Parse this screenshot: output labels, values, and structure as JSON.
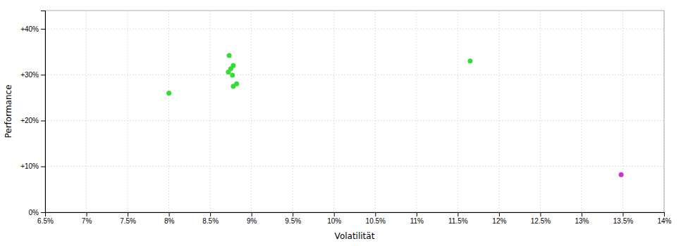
{
  "chart_data": {
    "type": "scatter",
    "x_label": "Volatilität",
    "y_label": "Performance",
    "xlim": [
      0.065,
      0.14
    ],
    "ylim": [
      0.0,
      0.44
    ],
    "xticks": [
      {
        "value": 0.065,
        "label": "6.5%"
      },
      {
        "value": 0.07,
        "label": "7%"
      },
      {
        "value": 0.075,
        "label": "7.5%"
      },
      {
        "value": 0.08,
        "label": "8%"
      },
      {
        "value": 0.085,
        "label": "8.5%"
      },
      {
        "value": 0.09,
        "label": "9%"
      },
      {
        "value": 0.095,
        "label": "9.5%"
      },
      {
        "value": 0.1,
        "label": "10%"
      },
      {
        "value": 0.105,
        "label": "10.5%"
      },
      {
        "value": 0.11,
        "label": "11%"
      },
      {
        "value": 0.115,
        "label": "11.5%"
      },
      {
        "value": 0.12,
        "label": "12%"
      },
      {
        "value": 0.125,
        "label": "12.5%"
      },
      {
        "value": 0.13,
        "label": "13%"
      },
      {
        "value": 0.135,
        "label": "13.5%"
      },
      {
        "value": 0.14,
        "label": "14%"
      }
    ],
    "yticks": [
      {
        "value": 0.0,
        "label": "0%"
      },
      {
        "value": 0.1,
        "label": "+10%"
      },
      {
        "value": 0.2,
        "label": "+20%"
      },
      {
        "value": 0.3,
        "label": "+30%"
      },
      {
        "value": 0.4,
        "label": "+40%"
      }
    ],
    "grid": true,
    "series": [
      {
        "color": "#33dd33",
        "x": [
          0.0873,
          0.0878,
          0.0875,
          0.0872,
          0.0877,
          0.0882,
          0.0878,
          0.08,
          0.1165
        ],
        "values": [
          0.342,
          0.32,
          0.313,
          0.306,
          0.299,
          0.28,
          0.275,
          0.26,
          0.33
        ]
      },
      {
        "color": "#cc33cc",
        "x": [
          0.1348
        ],
        "values": [
          0.082
        ]
      }
    ]
  }
}
